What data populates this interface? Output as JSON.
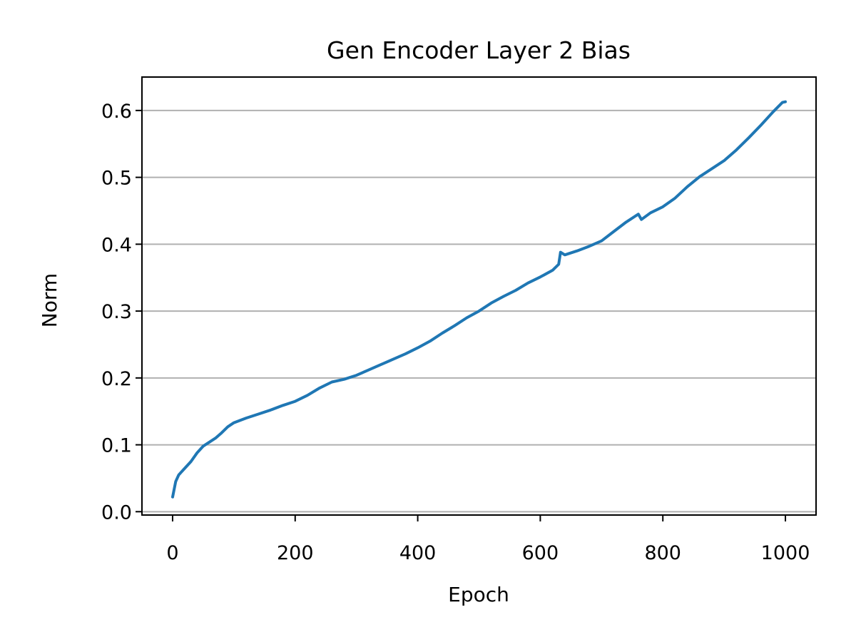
{
  "chart_data": {
    "type": "line",
    "title": "Gen Encoder Layer 2 Bias",
    "xlabel": "Epoch",
    "ylabel": "Norm",
    "xlim": [
      -50,
      1050
    ],
    "ylim": [
      -0.005,
      0.65
    ],
    "x_ticks": [
      0,
      200,
      400,
      600,
      800,
      1000
    ],
    "y_ticks": [
      0.0,
      0.1,
      0.2,
      0.3,
      0.4,
      0.5,
      0.6
    ],
    "grid": "y",
    "colors": {
      "line": "#1f77b4",
      "grid": "#b0b0b0",
      "axes": "#000000"
    },
    "series": [
      {
        "x": [
          0,
          5,
          10,
          20,
          30,
          40,
          50,
          60,
          70,
          80,
          90,
          100,
          120,
          140,
          160,
          180,
          200,
          220,
          240,
          260,
          280,
          300,
          320,
          340,
          360,
          380,
          400,
          420,
          440,
          460,
          480,
          500,
          520,
          540,
          560,
          580,
          600,
          620,
          630,
          633,
          640,
          660,
          680,
          700,
          720,
          740,
          760,
          765,
          780,
          800,
          820,
          840,
          860,
          880,
          900,
          920,
          940,
          960,
          980,
          995,
          1000
        ],
        "values": [
          0.022,
          0.045,
          0.055,
          0.065,
          0.075,
          0.088,
          0.098,
          0.104,
          0.11,
          0.118,
          0.127,
          0.133,
          0.14,
          0.146,
          0.152,
          0.159,
          0.165,
          0.174,
          0.185,
          0.194,
          0.198,
          0.204,
          0.212,
          0.22,
          0.228,
          0.236,
          0.245,
          0.255,
          0.267,
          0.278,
          0.29,
          0.3,
          0.312,
          0.322,
          0.331,
          0.342,
          0.351,
          0.361,
          0.37,
          0.388,
          0.384,
          0.39,
          0.397,
          0.405,
          0.419,
          0.433,
          0.445,
          0.437,
          0.447,
          0.456,
          0.469,
          0.486,
          0.501,
          0.513,
          0.525,
          0.541,
          0.559,
          0.578,
          0.598,
          0.612,
          0.613
        ]
      }
    ]
  }
}
